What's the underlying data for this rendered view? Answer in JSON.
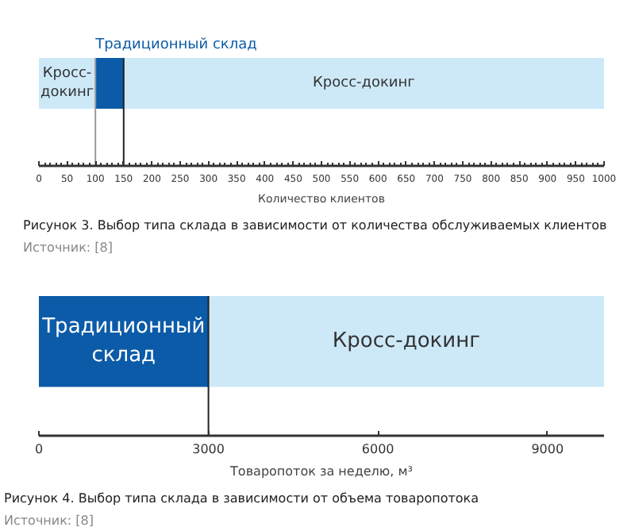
{
  "chart_data": [
    {
      "type": "bar",
      "orientation": "horizontal",
      "stacked": true,
      "categories": [
        null
      ],
      "series": [
        {
          "name": "Кросс-докинг",
          "color": "#cde9f8",
          "values": [
            100
          ]
        },
        {
          "name": "Традиционный склад",
          "color": "#0b5ba8",
          "values": [
            50
          ]
        },
        {
          "name": "Кросс-докинг",
          "color": "#cde9f8",
          "values": [
            850
          ]
        }
      ],
      "xlim": [
        0,
        1000
      ],
      "xticks": [
        0,
        50,
        100,
        150,
        200,
        250,
        300,
        350,
        400,
        450,
        500,
        550,
        600,
        650,
        700,
        750,
        800,
        850,
        900,
        950,
        1000
      ],
      "xlabel": "Количество клиентов",
      "ref_lines": [
        {
          "axis": "x",
          "value": 100,
          "color": "#999999"
        },
        {
          "axis": "x",
          "value": 150,
          "color": "#222222"
        }
      ],
      "tick_labels": "x",
      "legend": false,
      "grid": false,
      "annotations": [
        "Рисунок 3. Выбор типа склада в зависимости от количества обслуживаемых клиентов",
        "Источник: [8]"
      ]
    },
    {
      "type": "bar",
      "orientation": "horizontal",
      "stacked": true,
      "categories": [
        null
      ],
      "series": [
        {
          "name": "Традиционный склад",
          "color": "#0b5ba8",
          "values": [
            3000
          ]
        },
        {
          "name": "Кросс-докинг",
          "color": "#cde9f8",
          "values": [
            7000
          ]
        }
      ],
      "xlim": [
        0,
        10000
      ],
      "xticks": [
        0,
        3000,
        6000,
        9000
      ],
      "xlabel": "Товаропоток за неделю, м³",
      "ref_lines": [
        {
          "axis": "x",
          "value": 3000,
          "color": "#222222"
        }
      ],
      "tick_labels": "x",
      "legend": false,
      "grid": false,
      "annotations": [
        "Рисунок 4. Выбор типа склада в зависимости от объема товаропотока",
        "Источник: [8]"
      ]
    }
  ]
}
